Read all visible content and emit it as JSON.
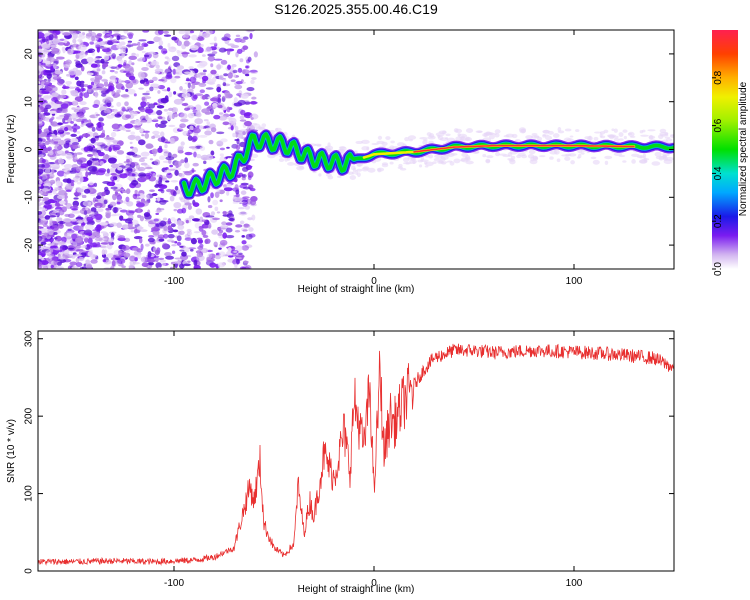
{
  "title": "S126.2025.355.00.46.C19",
  "chart_data": [
    {
      "type": "heatmap",
      "xlabel": "Height of straight line (km)",
      "ylabel": "Frequency (Hz)",
      "xlim": [
        -168,
        150
      ],
      "ylim": [
        -25,
        25
      ],
      "xticks": [
        -100,
        0,
        100
      ],
      "xtick_labels": [
        "-100",
        "0",
        "100"
      ],
      "yticks": [
        -20,
        -10,
        0,
        10,
        20
      ],
      "ytick_labels": [
        "-20",
        "-10",
        "0",
        "10",
        "20"
      ],
      "ridge": {
        "description_values": [
          {
            "x": -90,
            "freq": -8
          },
          {
            "x": -70,
            "freq": -4
          },
          {
            "x": -60,
            "freq": 2
          },
          {
            "x": -45,
            "freq": 1
          },
          {
            "x": -30,
            "freq": -2
          },
          {
            "x": -15,
            "freq": -3
          },
          {
            "x": 0,
            "freq": -1
          },
          {
            "x": 20,
            "freq": -0.5
          },
          {
            "x": 40,
            "freq": 0.5
          },
          {
            "x": 60,
            "freq": 0.8
          },
          {
            "x": 100,
            "freq": 0.8
          },
          {
            "x": 150,
            "freq": 0.5
          }
        ]
      },
      "colorbar": {
        "label": "Normalized spectral amplitude",
        "range": [
          0,
          1
        ],
        "ticks": [
          0.0,
          0.2,
          0.4,
          0.6,
          0.8
        ],
        "tick_labels": [
          "0.0",
          "0.2",
          "0.4",
          "0.6",
          "0.8"
        ]
      }
    },
    {
      "type": "line",
      "xlabel": "Height of straight line (km)",
      "ylabel": "SNR (10 * v/v)",
      "xlim": [
        -168,
        150
      ],
      "ylim": [
        0,
        310
      ],
      "xticks": [
        -100,
        0,
        100
      ],
      "xtick_labels": [
        "-100",
        "0",
        "100"
      ],
      "yticks": [
        0,
        100,
        200,
        300
      ],
      "ytick_labels": [
        "0",
        "100",
        "200",
        "300"
      ],
      "color": "#e83030",
      "x": [
        -168,
        -150,
        -130,
        -110,
        -90,
        -80,
        -70,
        -65,
        -62,
        -60,
        -57,
        -55,
        -50,
        -45,
        -40,
        -38,
        -35,
        -32,
        -30,
        -25,
        -20,
        -15,
        -12,
        -10,
        -5,
        -2,
        0,
        3,
        5,
        8,
        10,
        15,
        20,
        25,
        30,
        35,
        40,
        50,
        60,
        80,
        100,
        120,
        140,
        150
      ],
      "y": [
        12,
        12,
        13,
        12,
        14,
        18,
        30,
        80,
        110,
        90,
        140,
        60,
        30,
        20,
        35,
        110,
        50,
        90,
        70,
        150,
        120,
        180,
        130,
        220,
        160,
        240,
        100,
        260,
        150,
        200,
        190,
        220,
        240,
        260,
        275,
        280,
        285,
        285,
        282,
        285,
        283,
        280,
        275,
        262
      ]
    }
  ]
}
